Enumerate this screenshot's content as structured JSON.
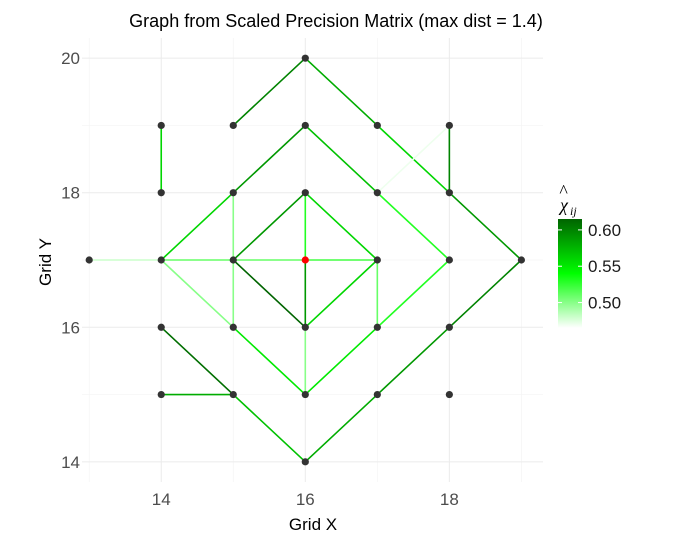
{
  "chart_data": {
    "type": "scatter",
    "title": "Graph from Scaled Precision Matrix (max dist = 1.4)",
    "xlabel": "Grid X",
    "ylabel": "Grid Y",
    "xlim": [
      12.9,
      19.3
    ],
    "ylim": [
      13.7,
      20.3
    ],
    "xticks": [
      14,
      16,
      18
    ],
    "yticks": [
      14,
      16,
      18,
      20
    ],
    "grid": true,
    "legend": {
      "title_main": "χ",
      "title_hat": "^",
      "title_sub": "ij",
      "placement": "right",
      "range": [
        0.465,
        0.615
      ],
      "ticks": [
        0.5,
        0.55,
        0.6
      ],
      "tick_labels": [
        "0.50",
        "0.55",
        "0.60"
      ],
      "colors": [
        "#ffffff",
        "#00ff00",
        "#006400"
      ]
    },
    "colors": {
      "point": "#333333",
      "highlight": "#ff0000"
    },
    "highlight_point": [
      16,
      17
    ],
    "points": [
      [
        16,
        20
      ],
      [
        14,
        19
      ],
      [
        15,
        19
      ],
      [
        16,
        19
      ],
      [
        17,
        19
      ],
      [
        18,
        19
      ],
      [
        14,
        18
      ],
      [
        15,
        18
      ],
      [
        16,
        18
      ],
      [
        17,
        18
      ],
      [
        18,
        18
      ],
      [
        13,
        17
      ],
      [
        14,
        17
      ],
      [
        15,
        17
      ],
      [
        16,
        17
      ],
      [
        17,
        17
      ],
      [
        18,
        17
      ],
      [
        19,
        17
      ],
      [
        14,
        16
      ],
      [
        15,
        16
      ],
      [
        16,
        16
      ],
      [
        17,
        16
      ],
      [
        18,
        16
      ],
      [
        14,
        15
      ],
      [
        15,
        15
      ],
      [
        16,
        15
      ],
      [
        17,
        15
      ],
      [
        18,
        15
      ],
      [
        16,
        14
      ]
    ],
    "edges": [
      {
        "from": [
          15,
          19
        ],
        "to": [
          16,
          20
        ],
        "value": 0.6
      },
      {
        "from": [
          16,
          20
        ],
        "to": [
          17,
          19
        ],
        "value": 0.58
      },
      {
        "from": [
          14,
          19
        ],
        "to": [
          14,
          18
        ],
        "value": 0.56
      },
      {
        "from": [
          15,
          18
        ],
        "to": [
          16,
          19
        ],
        "value": 0.59
      },
      {
        "from": [
          16,
          19
        ],
        "to": [
          17,
          18
        ],
        "value": 0.57
      },
      {
        "from": [
          17,
          19
        ],
        "to": [
          18,
          18
        ],
        "value": 0.56
      },
      {
        "from": [
          18,
          19
        ],
        "to": [
          18,
          18
        ],
        "value": 0.6
      },
      {
        "from": [
          18,
          18
        ],
        "to": [
          19,
          17
        ],
        "value": 0.59
      },
      {
        "from": [
          19,
          17
        ],
        "to": [
          18,
          16
        ],
        "value": 0.6
      },
      {
        "from": [
          18,
          16
        ],
        "to": [
          17,
          15
        ],
        "value": 0.59
      },
      {
        "from": [
          17,
          15
        ],
        "to": [
          16,
          14
        ],
        "value": 0.58
      },
      {
        "from": [
          16,
          14
        ],
        "to": [
          15,
          15
        ],
        "value": 0.57
      },
      {
        "from": [
          15,
          15
        ],
        "to": [
          14,
          16
        ],
        "value": 0.61
      },
      {
        "from": [
          15,
          15
        ],
        "to": [
          14,
          15
        ],
        "value": 0.58
      },
      {
        "from": [
          14,
          17
        ],
        "to": [
          15,
          18
        ],
        "value": 0.56
      },
      {
        "from": [
          15,
          18
        ],
        "to": [
          15,
          17
        ],
        "value": 0.5
      },
      {
        "from": [
          15,
          17
        ],
        "to": [
          15,
          16
        ],
        "value": 0.5
      },
      {
        "from": [
          15,
          16
        ],
        "to": [
          14,
          17
        ],
        "value": 0.5
      },
      {
        "from": [
          13,
          17
        ],
        "to": [
          14,
          17
        ],
        "value": 0.48
      },
      {
        "from": [
          14,
          17
        ],
        "to": [
          16,
          17
        ],
        "value": 0.51
      },
      {
        "from": [
          16,
          17
        ],
        "to": [
          17,
          17
        ],
        "value": 0.52
      },
      {
        "from": [
          15,
          17
        ],
        "to": [
          16,
          18
        ],
        "value": 0.59
      },
      {
        "from": [
          16,
          18
        ],
        "to": [
          17,
          17
        ],
        "value": 0.56
      },
      {
        "from": [
          15,
          17
        ],
        "to": [
          16,
          16
        ],
        "value": 0.615
      },
      {
        "from": [
          16,
          16
        ],
        "to": [
          17,
          17
        ],
        "value": 0.56
      },
      {
        "from": [
          16,
          18
        ],
        "to": [
          16,
          17
        ],
        "value": 0.53
      },
      {
        "from": [
          16,
          17
        ],
        "to": [
          16,
          16
        ],
        "value": 0.59
      },
      {
        "from": [
          17,
          18
        ],
        "to": [
          18,
          17
        ],
        "value": 0.53
      },
      {
        "from": [
          18,
          17
        ],
        "to": [
          17,
          16
        ],
        "value": 0.53
      },
      {
        "from": [
          17,
          16
        ],
        "to": [
          16,
          15
        ],
        "value": 0.55
      },
      {
        "from": [
          16,
          15
        ],
        "to": [
          15,
          16
        ],
        "value": 0.55
      },
      {
        "from": [
          17,
          17
        ],
        "to": [
          17,
          16
        ],
        "value": 0.51
      },
      {
        "from": [
          16,
          16
        ],
        "to": [
          16,
          15
        ],
        "value": 0.5
      },
      {
        "from": [
          17,
          18
        ],
        "to": [
          18,
          19
        ],
        "value": 0.47
      }
    ]
  }
}
